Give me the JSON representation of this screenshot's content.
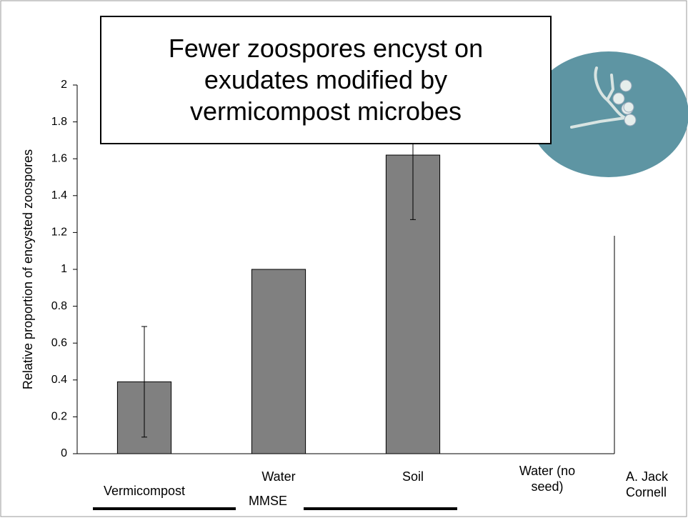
{
  "chart_data": {
    "type": "bar",
    "title": "Fewer zoospores encyst on exudates modified by vermicompost microbes",
    "y_label": "Relative proportion of encysted zoospores",
    "categories": [
      "Vermicompost",
      "Water",
      "Soil",
      "Water (no seed)"
    ],
    "values": [
      0.39,
      1.0,
      1.62,
      0
    ],
    "errors": [
      0.3,
      0,
      0.35,
      0
    ],
    "color": "#808080",
    "group_label": "MMSE",
    "annotation": "A. Jack Cornell",
    "ylim": [
      0,
      2
    ],
    "yticks": [
      0,
      0.2,
      0.4,
      0.6,
      0.8,
      1,
      1.2,
      1.4,
      1.6,
      1.8,
      2
    ]
  }
}
